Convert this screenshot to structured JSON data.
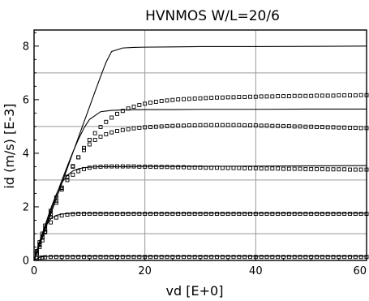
{
  "chart_data": {
    "type": "scatter",
    "title": "HVNMOS W/L=20/6",
    "xlabel": "vd  [E+0]",
    "ylabel": "id (m/s)  [E-3]",
    "xlim": [
      0,
      60
    ],
    "ylim": [
      0,
      8.6
    ],
    "xticks": [
      0,
      20,
      40,
      60
    ],
    "xtick_labels": [
      "0",
      "20",
      "40",
      "60"
    ],
    "yticks": [
      0,
      2,
      4,
      6,
      8
    ],
    "ytick_labels": [
      "0",
      "2",
      "4",
      "6",
      "8"
    ],
    "grid": true,
    "legend": "none",
    "series": [
      {
        "kind": "line",
        "x": [
          0,
          1,
          2,
          3,
          4,
          5,
          6,
          7,
          8,
          9,
          10,
          11,
          12,
          13,
          14,
          16,
          18,
          20,
          25,
          30,
          40,
          50,
          60
        ],
        "values": [
          0,
          0.58,
          1.15,
          1.72,
          2.3,
          2.87,
          3.44,
          4.02,
          4.59,
          5.16,
          5.73,
          6.3,
          6.86,
          7.4,
          7.8,
          7.93,
          7.95,
          7.96,
          7.97,
          7.98,
          7.98,
          7.99,
          8.0
        ]
      },
      {
        "kind": "line",
        "x": [
          0,
          1,
          2,
          3,
          4,
          5,
          6,
          7,
          8,
          9,
          10,
          12,
          14,
          16,
          20,
          25,
          30,
          40,
          50,
          60
        ],
        "values": [
          0,
          0.62,
          1.22,
          1.82,
          2.42,
          2.98,
          3.52,
          4.04,
          4.52,
          4.94,
          5.26,
          5.55,
          5.6,
          5.62,
          5.63,
          5.63,
          5.64,
          5.64,
          5.65,
          5.65
        ]
      },
      {
        "kind": "line",
        "x": [
          0,
          1,
          2,
          3,
          4,
          5,
          6,
          7,
          8,
          9,
          10,
          11,
          12,
          14,
          16,
          20,
          25,
          30,
          40,
          50,
          60
        ],
        "values": [
          0,
          0.68,
          1.32,
          1.93,
          2.46,
          2.9,
          3.18,
          3.34,
          3.42,
          3.46,
          3.48,
          3.49,
          3.5,
          3.5,
          3.5,
          3.51,
          3.51,
          3.51,
          3.52,
          3.53,
          3.54
        ]
      },
      {
        "kind": "line",
        "x": [
          0,
          1,
          2,
          3,
          4,
          5,
          6,
          8,
          10,
          15,
          20,
          30,
          40,
          50,
          60
        ],
        "values": [
          0,
          0.72,
          1.26,
          1.55,
          1.68,
          1.73,
          1.75,
          1.76,
          1.76,
          1.76,
          1.76,
          1.76,
          1.76,
          1.76,
          1.76
        ]
      },
      {
        "kind": "line",
        "x": [
          0,
          1,
          2,
          4,
          10,
          20,
          30,
          40,
          50,
          60
        ],
        "values": [
          0,
          0.12,
          0.15,
          0.16,
          0.16,
          0.16,
          0.16,
          0.16,
          0.16,
          0.16
        ]
      },
      {
        "kind": "markers",
        "marker": "square",
        "x": [
          0.5,
          1,
          1.5,
          2,
          3,
          4,
          5,
          6,
          7,
          8,
          9,
          10,
          11,
          12,
          13,
          14,
          15,
          16,
          17,
          18,
          19,
          20,
          21,
          22,
          23,
          24,
          25,
          26,
          27,
          28,
          29,
          30,
          31,
          32,
          33,
          34,
          35,
          36,
          37,
          38,
          39,
          40,
          41,
          42,
          43,
          44,
          45,
          46,
          47,
          48,
          49,
          50,
          51,
          52,
          53,
          54,
          55,
          56,
          57,
          58,
          59,
          60
        ],
        "values": [
          0.25,
          0.5,
          0.75,
          1.05,
          1.62,
          2.15,
          2.65,
          3.1,
          3.5,
          3.85,
          4.2,
          4.5,
          4.75,
          4.98,
          5.17,
          5.33,
          5.47,
          5.58,
          5.67,
          5.74,
          5.8,
          5.85,
          5.89,
          5.92,
          5.95,
          5.97,
          5.99,
          6.01,
          6.02,
          6.03,
          6.04,
          6.05,
          6.06,
          6.07,
          6.08,
          6.08,
          6.09,
          6.09,
          6.1,
          6.1,
          6.11,
          6.11,
          6.12,
          6.12,
          6.12,
          6.13,
          6.13,
          6.13,
          6.14,
          6.14,
          6.14,
          6.14,
          6.15,
          6.15,
          6.15,
          6.15,
          6.16,
          6.16,
          6.16,
          6.16,
          6.17,
          6.17
        ]
      },
      {
        "kind": "markers",
        "marker": "square",
        "x": [
          0.5,
          1,
          1.5,
          2,
          3,
          4,
          5,
          6,
          7,
          8,
          9,
          10,
          11,
          12,
          13,
          14,
          15,
          16,
          17,
          18,
          19,
          20,
          21,
          22,
          23,
          24,
          25,
          26,
          27,
          28,
          29,
          30,
          31,
          32,
          33,
          34,
          35,
          36,
          37,
          38,
          39,
          40,
          41,
          42,
          43,
          44,
          45,
          46,
          47,
          48,
          49,
          50,
          51,
          52,
          53,
          54,
          55,
          56,
          57,
          58,
          59,
          60
        ],
        "values": [
          0.3,
          0.6,
          0.88,
          1.15,
          1.7,
          2.22,
          2.7,
          3.12,
          3.52,
          3.85,
          4.12,
          4.33,
          4.5,
          4.62,
          4.71,
          4.78,
          4.83,
          4.87,
          4.9,
          4.93,
          4.95,
          4.97,
          4.98,
          4.99,
          5.0,
          5.01,
          5.02,
          5.03,
          5.03,
          5.04,
          5.04,
          5.05,
          5.05,
          5.05,
          5.05,
          5.05,
          5.05,
          5.05,
          5.05,
          5.04,
          5.04,
          5.04,
          5.03,
          5.03,
          5.02,
          5.02,
          5.01,
          5.01,
          5.0,
          5.0,
          4.99,
          4.99,
          4.98,
          4.98,
          4.97,
          4.97,
          4.96,
          4.96,
          4.95,
          4.95,
          4.94,
          4.94
        ]
      },
      {
        "kind": "markers",
        "marker": "square",
        "x": [
          0.5,
          1,
          1.5,
          2,
          3,
          4,
          5,
          6,
          7,
          8,
          9,
          10,
          11,
          12,
          13,
          14,
          15,
          16,
          17,
          18,
          19,
          20,
          21,
          22,
          23,
          24,
          25,
          26,
          27,
          28,
          29,
          30,
          31,
          32,
          33,
          34,
          35,
          36,
          37,
          38,
          39,
          40,
          41,
          42,
          43,
          44,
          45,
          46,
          47,
          48,
          49,
          50,
          51,
          52,
          53,
          54,
          55,
          56,
          57,
          58,
          59,
          60
        ],
        "values": [
          0.35,
          0.68,
          1.0,
          1.3,
          1.85,
          2.35,
          2.72,
          3.0,
          3.2,
          3.33,
          3.41,
          3.46,
          3.49,
          3.5,
          3.51,
          3.51,
          3.51,
          3.51,
          3.51,
          3.51,
          3.5,
          3.5,
          3.5,
          3.49,
          3.49,
          3.49,
          3.48,
          3.48,
          3.48,
          3.47,
          3.47,
          3.47,
          3.46,
          3.46,
          3.46,
          3.45,
          3.45,
          3.45,
          3.45,
          3.44,
          3.44,
          3.44,
          3.43,
          3.43,
          3.43,
          3.43,
          3.42,
          3.42,
          3.42,
          3.42,
          3.41,
          3.41,
          3.41,
          3.41,
          3.4,
          3.4,
          3.4,
          3.4,
          3.39,
          3.39,
          3.39,
          3.39
        ]
      },
      {
        "kind": "markers",
        "marker": "square",
        "x": [
          0.5,
          1,
          1.5,
          2,
          3,
          4,
          5,
          6,
          7,
          8,
          9,
          10,
          11,
          12,
          13,
          14,
          15,
          16,
          17,
          18,
          19,
          20,
          21,
          22,
          23,
          24,
          25,
          26,
          27,
          28,
          29,
          30,
          31,
          32,
          33,
          34,
          35,
          36,
          37,
          38,
          39,
          40,
          41,
          42,
          43,
          44,
          45,
          46,
          47,
          48,
          49,
          50,
          51,
          52,
          53,
          54,
          55,
          56,
          57,
          58,
          59,
          60
        ],
        "values": [
          0.3,
          0.58,
          0.85,
          1.08,
          1.42,
          1.6,
          1.68,
          1.71,
          1.73,
          1.74,
          1.74,
          1.74,
          1.74,
          1.74,
          1.74,
          1.74,
          1.74,
          1.74,
          1.74,
          1.74,
          1.74,
          1.74,
          1.74,
          1.74,
          1.74,
          1.74,
          1.74,
          1.74,
          1.74,
          1.74,
          1.74,
          1.74,
          1.74,
          1.74,
          1.74,
          1.74,
          1.74,
          1.74,
          1.74,
          1.74,
          1.74,
          1.74,
          1.74,
          1.74,
          1.74,
          1.74,
          1.74,
          1.74,
          1.74,
          1.74,
          1.74,
          1.74,
          1.74,
          1.74,
          1.74,
          1.74,
          1.74,
          1.74,
          1.74,
          1.74,
          1.74,
          1.74
        ]
      },
      {
        "kind": "markers",
        "marker": "square",
        "x": [
          0.5,
          1,
          1.5,
          2,
          3,
          4,
          5,
          6,
          7,
          8,
          9,
          10,
          11,
          12,
          13,
          14,
          15,
          16,
          17,
          18,
          19,
          20,
          21,
          22,
          23,
          24,
          25,
          26,
          27,
          28,
          29,
          30,
          31,
          32,
          33,
          34,
          35,
          36,
          37,
          38,
          39,
          40,
          41,
          42,
          43,
          44,
          45,
          46,
          47,
          48,
          49,
          50,
          51,
          52,
          53,
          54,
          55,
          56,
          57,
          58,
          59,
          60
        ],
        "values": [
          0.08,
          0.1,
          0.11,
          0.12,
          0.13,
          0.13,
          0.13,
          0.13,
          0.13,
          0.13,
          0.13,
          0.13,
          0.13,
          0.13,
          0.13,
          0.13,
          0.13,
          0.13,
          0.13,
          0.13,
          0.13,
          0.13,
          0.13,
          0.13,
          0.13,
          0.13,
          0.13,
          0.13,
          0.13,
          0.13,
          0.13,
          0.13,
          0.13,
          0.13,
          0.13,
          0.13,
          0.13,
          0.13,
          0.13,
          0.13,
          0.13,
          0.13,
          0.13,
          0.13,
          0.13,
          0.13,
          0.13,
          0.13,
          0.13,
          0.13,
          0.13,
          0.13,
          0.13,
          0.13,
          0.13,
          0.13,
          0.13,
          0.13,
          0.13,
          0.13,
          0.13,
          0.13
        ]
      }
    ]
  }
}
